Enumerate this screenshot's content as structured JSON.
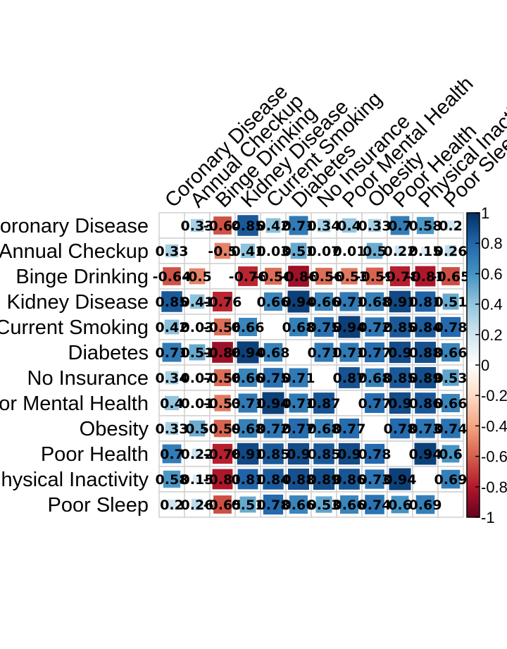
{
  "chart_data": {
    "type": "heatmap",
    "variables": [
      "Coronary Disease",
      "Annual Checkup",
      "Binge Drinking",
      "Kidney Disease",
      "Current Smoking",
      "Diabetes",
      "No Insurance",
      "Poor Mental Health",
      "Obesity",
      "Poor Health",
      "Physical Inactivity",
      "Poor Sleep"
    ],
    "matrix": [
      [
        null,
        "0.33",
        "-0.64",
        "0.85",
        "0.42",
        "0.71",
        "0.34",
        "0.4",
        "0.33",
        "0.7",
        "0.58",
        "0.2"
      ],
      [
        "0.33",
        null,
        "-0.5",
        "0.41",
        "0.03",
        "0.51",
        "0.07",
        "0.01",
        "0.5",
        "0.22",
        "0.15",
        "0.26"
      ],
      [
        "-0.64",
        "-0.5",
        null,
        "-0.76",
        "-0.56",
        "-0.86",
        "-0.56",
        "-0.53",
        "-0.59",
        "-0.78",
        "-0.81",
        "-0.65"
      ],
      [
        "0.85",
        "0.41",
        "-0.76",
        null,
        "0.66",
        "0.94",
        "0.66",
        "0.71",
        "0.68",
        "0.91",
        "0.81",
        "0.51"
      ],
      [
        "0.42",
        "0.03",
        "-0.56",
        "0.66",
        null,
        "0.68",
        "0.75",
        "0.94",
        "0.72",
        "0.85",
        "0.84",
        "0.78"
      ],
      [
        "0.71",
        "0.51",
        "-0.86",
        "0.94",
        "0.68",
        null,
        "0.71",
        "0.71",
        "0.77",
        "0.9",
        "0.88",
        "0.66"
      ],
      [
        "0.34",
        "0.07",
        "-0.56",
        "0.66",
        "0.75",
        "0.71",
        null,
        "0.87",
        "0.68",
        "0.85",
        "0.89",
        "0.53"
      ],
      [
        "0.4",
        "0.01",
        "-0.53",
        "0.71",
        "0.94",
        "0.71",
        "0.87",
        null,
        "0.77",
        "0.9",
        "0.86",
        "0.66"
      ],
      [
        "0.33",
        "0.5",
        "-0.59",
        "0.68",
        "0.72",
        "0.77",
        "0.68",
        "0.77",
        null,
        "0.78",
        "0.73",
        "0.74"
      ],
      [
        "0.7",
        "0.22",
        "-0.78",
        "0.91",
        "0.85",
        "0.9",
        "0.85",
        "0.9",
        "0.78",
        null,
        "0.94",
        "0.6"
      ],
      [
        "0.58",
        "0.15",
        "-0.81",
        "0.81",
        "0.84",
        "0.88",
        "0.89",
        "0.86",
        "0.73",
        "0.94",
        null,
        "0.69"
      ],
      [
        "0.2",
        "0.26",
        "-0.65",
        "0.51",
        "0.78",
        "0.66",
        "0.53",
        "0.66",
        "0.74",
        "0.6",
        "0.69",
        null
      ]
    ],
    "colorbar_ticks": [
      "1",
      "0.8",
      "0.6",
      "0.4",
      "0.2",
      "0",
      "-0.2",
      "-0.4",
      "-0.6",
      "-0.8",
      "-1"
    ],
    "value_range": [
      -1,
      1
    ],
    "colors": [
      "#67001f",
      "#b2182b",
      "#d6604d",
      "#f4a582",
      "#fddbc7",
      "#ffffff",
      "#d1e5f0",
      "#92c5de",
      "#4393c3",
      "#2166ac",
      "#053061"
    ]
  }
}
